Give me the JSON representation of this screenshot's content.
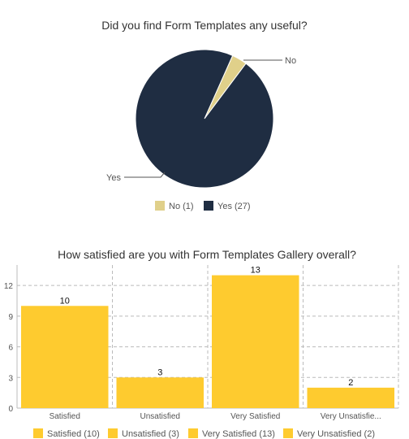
{
  "colors": {
    "pie_no": "#e0d08a",
    "pie_yes": "#1f2d42",
    "bar": "#fecb2f"
  },
  "chart_data": [
    {
      "type": "pie",
      "title": "Did you find Form Templates any useful?",
      "slices": [
        {
          "label": "No",
          "value": 1,
          "legend": "No (1)"
        },
        {
          "label": "Yes",
          "value": 27,
          "legend": "Yes (27)"
        }
      ],
      "legend_position": "bottom"
    },
    {
      "type": "bar",
      "title": "How satisfied are you with Form Templates Gallery overall?",
      "categories": [
        "Satisfied",
        "Unsatisfied",
        "Very Satisfied",
        "Very Unsatisfie..."
      ],
      "values": [
        10,
        3,
        13,
        2
      ],
      "data_labels": [
        "10",
        "3",
        "13",
        "2"
      ],
      "ylim": [
        0,
        14
      ],
      "yticks": [
        0,
        3,
        6,
        9,
        12
      ],
      "grid": true,
      "legend_position": "bottom",
      "legend": [
        "Satisfied (10)",
        "Unsatisfied (3)",
        "Very Satisfied (13)",
        "Very Unsatisfied (2)"
      ]
    }
  ]
}
